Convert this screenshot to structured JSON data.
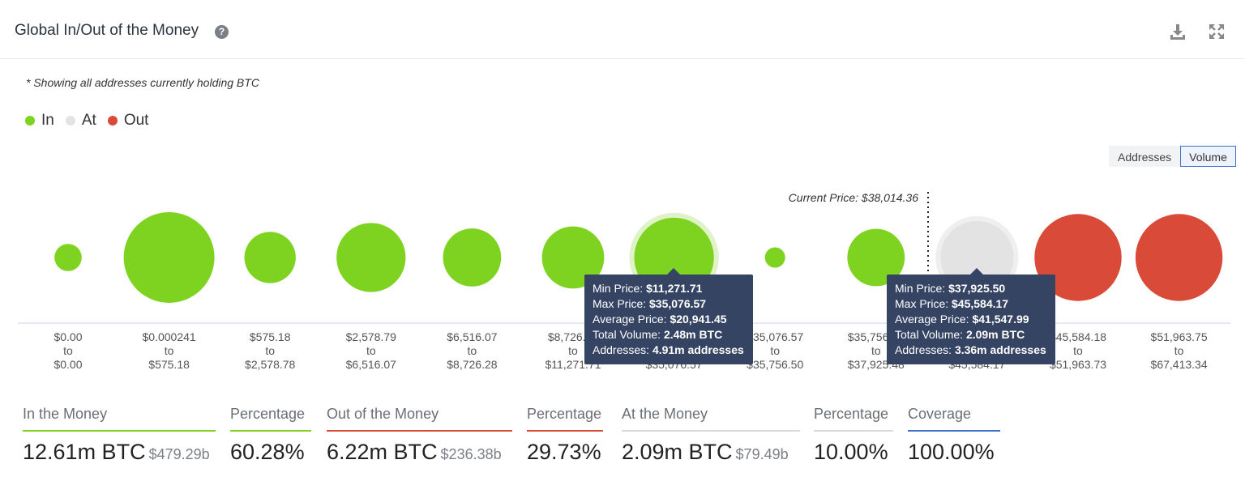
{
  "header": {
    "title": "Global In/Out of the Money",
    "help_glyph": "?",
    "icons": [
      "help-icon",
      "download-icon",
      "expand-icon"
    ]
  },
  "note": "* Showing all addresses currently holding BTC",
  "legend": [
    {
      "label": "In",
      "color": "#7ed321"
    },
    {
      "label": "At",
      "color": "#e3e3e3"
    },
    {
      "label": "Out",
      "color": "#d94b38"
    }
  ],
  "toggle": {
    "addresses": "Addresses",
    "volume": "Volume",
    "active": "Volume"
  },
  "chart_data": {
    "type": "bubble",
    "title": "",
    "current_price_label": "Current Price: $38,014.36",
    "current_price": 38014.36,
    "size_metric": "Total Volume (BTC)",
    "bins": [
      {
        "min": "$0.00",
        "max": "$0.00",
        "status": "In",
        "size": 0.09
      },
      {
        "min": "$0.000241",
        "max": "$575.18",
        "status": "In",
        "size": 1.0
      },
      {
        "min": "$575.18",
        "max": "$2,578.78",
        "status": "In",
        "size": 0.32
      },
      {
        "min": "$2,578.79",
        "max": "$6,516.07",
        "status": "In",
        "size": 0.58
      },
      {
        "min": "$6,516.07",
        "max": "$8,726.28",
        "status": "In",
        "size": 0.41
      },
      {
        "min": "$8,726.28",
        "max": "$11,271.71",
        "status": "In",
        "size": 0.47
      },
      {
        "min": "$11,271.71",
        "max": "$35,076.57",
        "status": "In",
        "size": 0.77,
        "highlight": true
      },
      {
        "min": "$35,076.57",
        "max": "$35,756.50",
        "status": "In",
        "size": 0.05
      },
      {
        "min": "$35,756.50",
        "max": "$37,925.48",
        "status": "In",
        "size": 0.4
      },
      {
        "min": "$37,925.50",
        "max": "$45,584.17",
        "status": "At",
        "size": 0.65,
        "highlight": true
      },
      {
        "min": "$45,584.18",
        "max": "$51,963.73",
        "status": "Out",
        "size": 0.92
      },
      {
        "min": "$51,963.75",
        "max": "$67,413.34",
        "status": "Out",
        "size": 0.92
      }
    ],
    "to_label": "to"
  },
  "tooltips": [
    {
      "rows": [
        {
          "label": "Min Price: ",
          "value": "$11,271.71"
        },
        {
          "label": "Max Price: ",
          "value": "$35,076.57"
        },
        {
          "label": "Average Price: ",
          "value": "$20,941.45"
        },
        {
          "label": "Total Volume: ",
          "value": "2.48m BTC"
        },
        {
          "label": "Addresses: ",
          "value": "4.91m addresses"
        }
      ]
    },
    {
      "rows": [
        {
          "label": "Min Price: ",
          "value": "$37,925.50"
        },
        {
          "label": "Max Price: ",
          "value": "$45,584.17"
        },
        {
          "label": "Average Price: ",
          "value": "$41,547.99"
        },
        {
          "label": "Total Volume: ",
          "value": "2.09m BTC"
        },
        {
          "label": "Addresses: ",
          "value": "3.36m addresses"
        }
      ]
    }
  ],
  "stats": [
    {
      "label": "In the Money",
      "value": "12.61m BTC",
      "sub": "$479.29b",
      "color": "#7ed321"
    },
    {
      "label": "Percentage",
      "value": "60.28%",
      "sub": "",
      "color": "#7ed321"
    },
    {
      "label": "Out of the Money",
      "value": "6.22m BTC",
      "sub": "$236.38b",
      "color": "#d94b38"
    },
    {
      "label": "Percentage",
      "value": "29.73%",
      "sub": "",
      "color": "#d94b38"
    },
    {
      "label": "At the Money",
      "value": "2.09m BTC",
      "sub": "$79.49b",
      "color": "#d9d9d9"
    },
    {
      "label": "Percentage",
      "value": "10.00%",
      "sub": "",
      "color": "#d9d9d9"
    },
    {
      "label": "Coverage",
      "value": "100.00%",
      "sub": "",
      "color": "#3f6fc6"
    }
  ]
}
